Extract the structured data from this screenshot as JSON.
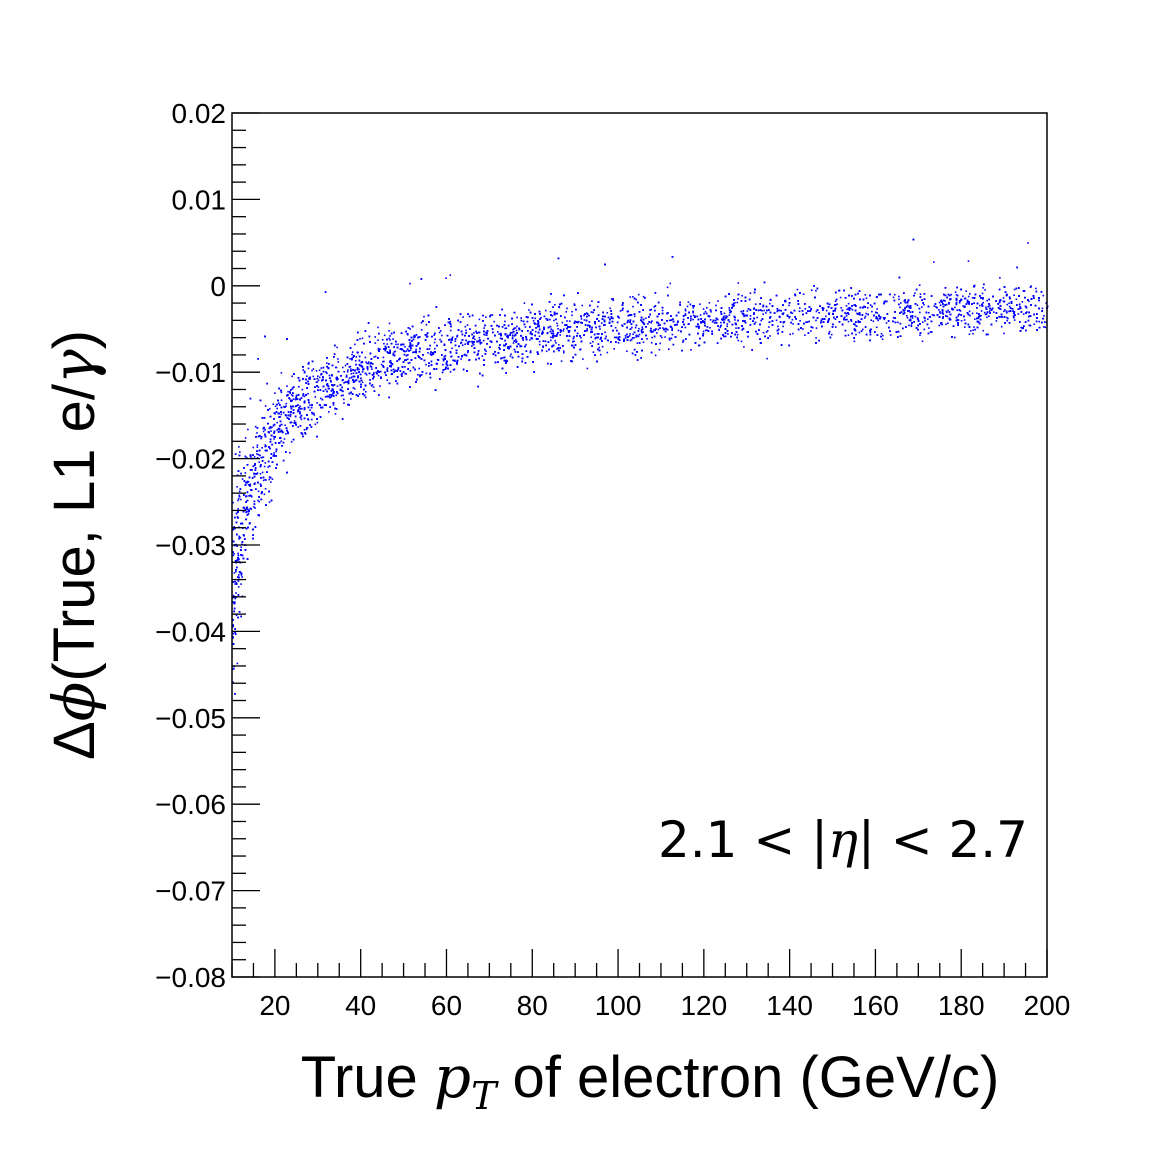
{
  "chart_data": {
    "type": "scatter",
    "title": "",
    "xlabel_parts": [
      "True ",
      "p",
      "T",
      " of electron (GeV/c)"
    ],
    "ylabel_parts": [
      "Δ",
      "ϕ",
      "(True, L1 e/",
      "γ",
      ")"
    ],
    "annotation_parts": [
      "2.1 < |",
      "η",
      "| < 2.7"
    ],
    "xlim": [
      10,
      200
    ],
    "ylim": [
      -0.08,
      0.02
    ],
    "x_ticks": [
      "20",
      "40",
      "60",
      "80",
      "100",
      "120",
      "140",
      "160",
      "180",
      "200"
    ],
    "y_ticks": [
      "0.02",
      "0.01",
      "0",
      "−0.01",
      "−0.02",
      "−0.03",
      "−0.04",
      "−0.05",
      "−0.06",
      "−0.07",
      "−0.08"
    ],
    "grid": false,
    "marker_color": "#0000ff",
    "band_center": {
      "x": [
        10,
        12,
        15,
        20,
        25,
        30,
        40,
        50,
        60,
        80,
        100,
        120,
        150,
        200
      ],
      "y": [
        -0.035,
        -0.028,
        -0.022,
        -0.017,
        -0.014,
        -0.012,
        -0.0095,
        -0.008,
        -0.007,
        -0.0055,
        -0.0045,
        -0.004,
        -0.0032,
        -0.0022
      ]
    },
    "band_halfwidth": {
      "x": [
        10,
        15,
        20,
        30,
        50,
        100,
        200
      ],
      "y": [
        0.01,
        0.006,
        0.0045,
        0.0035,
        0.003,
        0.0028,
        0.0025
      ]
    }
  }
}
